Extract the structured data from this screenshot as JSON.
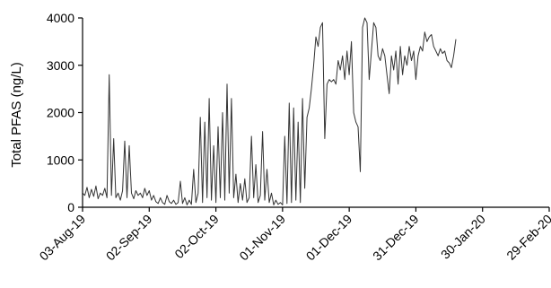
{
  "chart_data": {
    "type": "line",
    "title": "",
    "xlabel": "",
    "ylabel": "Total PFAS (ng/L)",
    "ylim": [
      0,
      4000
    ],
    "xlim": [
      "2019-08-03",
      "2020-02-29"
    ],
    "yticks": [
      {
        "value": 0,
        "label": "0"
      },
      {
        "value": 1000,
        "label": "1000"
      },
      {
        "value": 2000,
        "label": "2000"
      },
      {
        "value": 3000,
        "label": "3000"
      },
      {
        "value": 4000,
        "label": "4000"
      }
    ],
    "xticks": [
      {
        "value": "2019-08-03",
        "label": "03-Aug-19"
      },
      {
        "value": "2019-09-02",
        "label": "02-Sep-19"
      },
      {
        "value": "2019-10-02",
        "label": "02-Oct-19"
      },
      {
        "value": "2019-11-01",
        "label": "01-Nov-19"
      },
      {
        "value": "2019-12-01",
        "label": "01-Dec-19"
      },
      {
        "value": "2019-12-31",
        "label": "31-Dec-19"
      },
      {
        "value": "2020-01-30",
        "label": "30-Jan-20"
      },
      {
        "value": "2020-02-29",
        "label": "29-Feb-20"
      }
    ],
    "grid": false,
    "legend": "none",
    "series": [
      {
        "color": "#333333",
        "points": [
          [
            "2019-08-03",
            300
          ],
          [
            "2019-08-04",
            250
          ],
          [
            "2019-08-05",
            420
          ],
          [
            "2019-08-06",
            200
          ],
          [
            "2019-08-07",
            380
          ],
          [
            "2019-08-08",
            230
          ],
          [
            "2019-08-09",
            450
          ],
          [
            "2019-08-10",
            180
          ],
          [
            "2019-08-11",
            300
          ],
          [
            "2019-08-12",
            250
          ],
          [
            "2019-08-13",
            400
          ],
          [
            "2019-08-14",
            200
          ],
          [
            "2019-08-15",
            2800
          ],
          [
            "2019-08-16",
            250
          ],
          [
            "2019-08-17",
            1450
          ],
          [
            "2019-08-18",
            200
          ],
          [
            "2019-08-19",
            300
          ],
          [
            "2019-08-20",
            150
          ],
          [
            "2019-08-21",
            350
          ],
          [
            "2019-08-22",
            1400
          ],
          [
            "2019-08-23",
            200
          ],
          [
            "2019-08-24",
            1300
          ],
          [
            "2019-08-25",
            300
          ],
          [
            "2019-08-26",
            180
          ],
          [
            "2019-08-27",
            350
          ],
          [
            "2019-08-28",
            250
          ],
          [
            "2019-08-29",
            300
          ],
          [
            "2019-08-30",
            200
          ],
          [
            "2019-08-31",
            400
          ],
          [
            "2019-09-01",
            250
          ],
          [
            "2019-09-02",
            350
          ],
          [
            "2019-09-03",
            150
          ],
          [
            "2019-09-04",
            250
          ],
          [
            "2019-09-05",
            120
          ],
          [
            "2019-09-06",
            80
          ],
          [
            "2019-09-07",
            200
          ],
          [
            "2019-09-08",
            100
          ],
          [
            "2019-09-09",
            60
          ],
          [
            "2019-09-10",
            250
          ],
          [
            "2019-09-11",
            120
          ],
          [
            "2019-09-12",
            80
          ],
          [
            "2019-09-13",
            150
          ],
          [
            "2019-09-14",
            60
          ],
          [
            "2019-09-15",
            100
          ],
          [
            "2019-09-16",
            550
          ],
          [
            "2019-09-17",
            80
          ],
          [
            "2019-09-18",
            200
          ],
          [
            "2019-09-19",
            50
          ],
          [
            "2019-09-20",
            150
          ],
          [
            "2019-09-21",
            60
          ],
          [
            "2019-09-22",
            800
          ],
          [
            "2019-09-23",
            100
          ],
          [
            "2019-09-24",
            300
          ],
          [
            "2019-09-25",
            1900
          ],
          [
            "2019-09-26",
            100
          ],
          [
            "2019-09-27",
            1800
          ],
          [
            "2019-09-28",
            200
          ],
          [
            "2019-09-29",
            2300
          ],
          [
            "2019-09-30",
            150
          ],
          [
            "2019-10-01",
            1300
          ],
          [
            "2019-10-02",
            100
          ],
          [
            "2019-10-03",
            1700
          ],
          [
            "2019-10-04",
            200
          ],
          [
            "2019-10-05",
            2000
          ],
          [
            "2019-10-06",
            150
          ],
          [
            "2019-10-07",
            2600
          ],
          [
            "2019-10-08",
            300
          ],
          [
            "2019-10-09",
            2300
          ],
          [
            "2019-10-10",
            200
          ],
          [
            "2019-10-11",
            700
          ],
          [
            "2019-10-12",
            100
          ],
          [
            "2019-10-13",
            500
          ],
          [
            "2019-10-14",
            150
          ],
          [
            "2019-10-15",
            600
          ],
          [
            "2019-10-16",
            100
          ],
          [
            "2019-10-17",
            200
          ],
          [
            "2019-10-18",
            1500
          ],
          [
            "2019-10-19",
            200
          ],
          [
            "2019-10-20",
            900
          ],
          [
            "2019-10-21",
            100
          ],
          [
            "2019-10-22",
            250
          ],
          [
            "2019-10-23",
            1600
          ],
          [
            "2019-10-24",
            150
          ],
          [
            "2019-10-25",
            800
          ],
          [
            "2019-10-26",
            100
          ],
          [
            "2019-10-27",
            300
          ],
          [
            "2019-10-28",
            50
          ],
          [
            "2019-10-29",
            150
          ],
          [
            "2019-10-30",
            60
          ],
          [
            "2019-10-31",
            100
          ],
          [
            "2019-11-01",
            50
          ],
          [
            "2019-11-02",
            1500
          ],
          [
            "2019-11-03",
            80
          ],
          [
            "2019-11-04",
            2200
          ],
          [
            "2019-11-05",
            100
          ],
          [
            "2019-11-06",
            2100
          ],
          [
            "2019-11-07",
            150
          ],
          [
            "2019-11-08",
            1800
          ],
          [
            "2019-11-09",
            100
          ],
          [
            "2019-11-10",
            2300
          ],
          [
            "2019-11-11",
            400
          ],
          [
            "2019-11-12",
            1900
          ],
          [
            "2019-11-13",
            2100
          ],
          [
            "2019-11-14",
            2500
          ],
          [
            "2019-11-15",
            3000
          ],
          [
            "2019-11-16",
            3600
          ],
          [
            "2019-11-17",
            3400
          ],
          [
            "2019-11-18",
            3800
          ],
          [
            "2019-11-19",
            3900
          ],
          [
            "2019-11-20",
            1450
          ],
          [
            "2019-11-21",
            2600
          ],
          [
            "2019-11-22",
            2700
          ],
          [
            "2019-11-23",
            2650
          ],
          [
            "2019-11-24",
            2700
          ],
          [
            "2019-11-25",
            2600
          ],
          [
            "2019-11-26",
            3100
          ],
          [
            "2019-11-27",
            2900
          ],
          [
            "2019-11-28",
            3200
          ],
          [
            "2019-11-29",
            2700
          ],
          [
            "2019-11-30",
            3300
          ],
          [
            "2019-12-01",
            2800
          ],
          [
            "2019-12-02",
            3500
          ],
          [
            "2019-12-03",
            2000
          ],
          [
            "2019-12-04",
            1800
          ],
          [
            "2019-12-05",
            1700
          ],
          [
            "2019-12-06",
            750
          ],
          [
            "2019-12-07",
            3800
          ],
          [
            "2019-12-08",
            4000
          ],
          [
            "2019-12-09",
            3900
          ],
          [
            "2019-12-10",
            2700
          ],
          [
            "2019-12-11",
            3300
          ],
          [
            "2019-12-12",
            3900
          ],
          [
            "2019-12-13",
            3800
          ],
          [
            "2019-12-14",
            3200
          ],
          [
            "2019-12-15",
            3100
          ],
          [
            "2019-12-16",
            3350
          ],
          [
            "2019-12-17",
            3200
          ],
          [
            "2019-12-18",
            2800
          ],
          [
            "2019-12-19",
            2400
          ],
          [
            "2019-12-20",
            3200
          ],
          [
            "2019-12-21",
            2900
          ],
          [
            "2019-12-22",
            3300
          ],
          [
            "2019-12-23",
            2600
          ],
          [
            "2019-12-24",
            3400
          ],
          [
            "2019-12-25",
            2800
          ],
          [
            "2019-12-26",
            3200
          ],
          [
            "2019-12-27",
            3000
          ],
          [
            "2019-12-28",
            3400
          ],
          [
            "2019-12-29",
            3100
          ],
          [
            "2019-12-30",
            3300
          ],
          [
            "2019-12-31",
            2700
          ],
          [
            "2020-01-01",
            3200
          ],
          [
            "2020-01-02",
            3400
          ],
          [
            "2020-01-03",
            3300
          ],
          [
            "2020-01-04",
            3700
          ],
          [
            "2020-01-05",
            3500
          ],
          [
            "2020-01-06",
            3600
          ],
          [
            "2020-01-07",
            3650
          ],
          [
            "2020-01-08",
            3400
          ],
          [
            "2020-01-09",
            3300
          ],
          [
            "2020-01-10",
            3200
          ],
          [
            "2020-01-11",
            3350
          ],
          [
            "2020-01-12",
            3250
          ],
          [
            "2020-01-13",
            3300
          ],
          [
            "2020-01-14",
            3100
          ],
          [
            "2020-01-15",
            3050
          ],
          [
            "2020-01-16",
            2950
          ],
          [
            "2020-01-17",
            3200
          ],
          [
            "2020-01-18",
            3550
          ]
        ]
      }
    ]
  }
}
